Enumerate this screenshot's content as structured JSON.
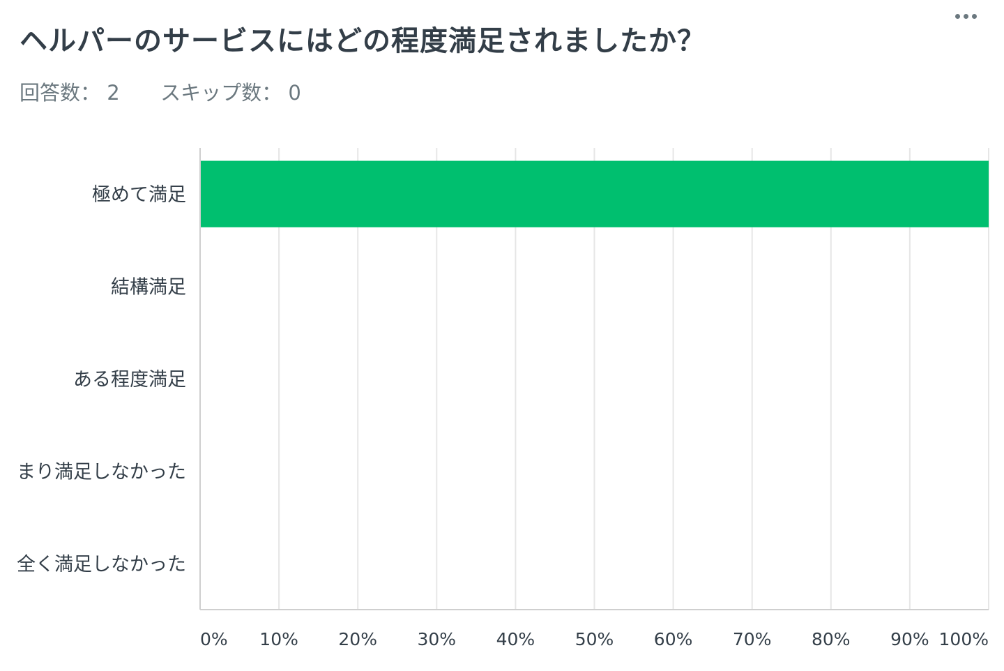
{
  "question": {
    "title": "ヘルパーのサービスにはどの程度満足されましたか？",
    "answered_label": "回答数：",
    "answered_value": "2",
    "skipped_label": "スキップ数：",
    "skipped_value": "0"
  },
  "menu": {
    "more_icon": "more-horizontal-icon"
  },
  "colors": {
    "bar": "#00bf6f",
    "grid": "#e6e6e6",
    "axis": "#cfcfcf"
  },
  "chart_data": {
    "type": "bar",
    "orientation": "horizontal",
    "categories": [
      "極めて満足",
      "結構満足",
      "ある程度満足",
      "まり満足しなかった",
      "全く満足しなかった"
    ],
    "values": [
      100,
      0,
      0,
      0,
      0
    ],
    "xlim": [
      0,
      100
    ],
    "x_ticks": [
      "0%",
      "10%",
      "20%",
      "30%",
      "40%",
      "50%",
      "60%",
      "70%",
      "80%",
      "90%",
      "100%"
    ],
    "grid": true,
    "title": "ヘルパーのサービスにはどの程度満足されましたか？"
  }
}
